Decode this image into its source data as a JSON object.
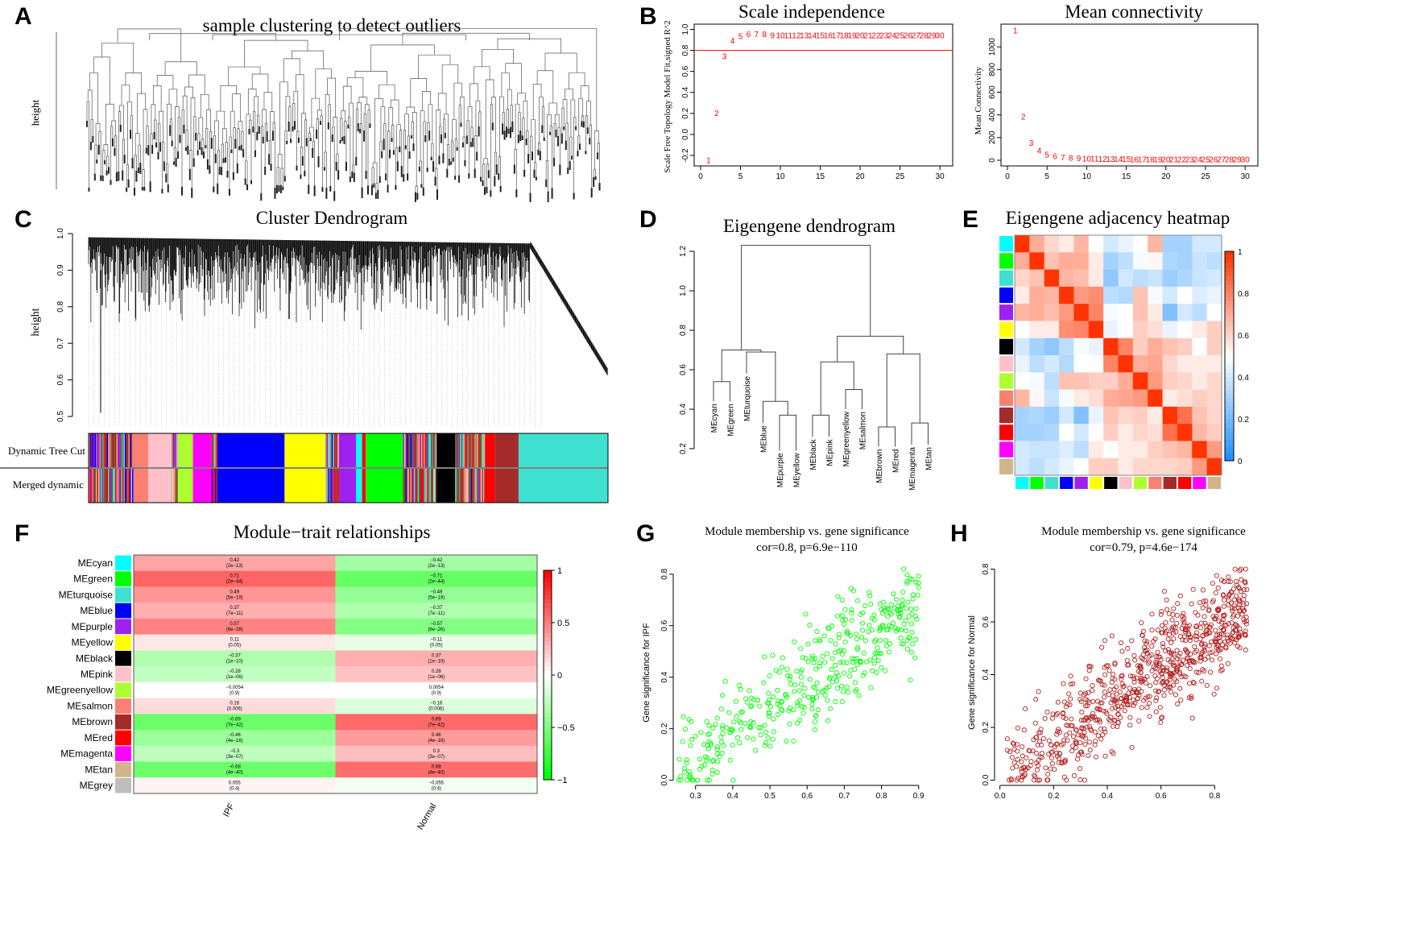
{
  "panel_labels": [
    "A",
    "B",
    "C",
    "D",
    "E",
    "F",
    "G",
    "H"
  ],
  "chart_data": [
    {
      "id": "A",
      "type": "dendrogram",
      "title": "sample clustering to detect outliers",
      "ylabel": "height"
    },
    {
      "id": "B1",
      "type": "scatter",
      "title": "Scale independence",
      "ylabel": "Scale Free Topology Model Fit,signed R^2",
      "xlabel": "",
      "xlim": [
        0,
        31
      ],
      "ylim": [
        -0.3,
        1.05
      ],
      "xticks": [
        0,
        5,
        10,
        15,
        20,
        25,
        30
      ],
      "yticks": [
        -0.2,
        0.0,
        0.2,
        0.4,
        0.6,
        0.8,
        1.0
      ],
      "threshold": 0.8,
      "threshold_color": "#ff0000",
      "x": [
        1,
        2,
        3,
        4,
        5,
        6,
        7,
        8,
        9,
        10,
        11,
        12,
        13,
        14,
        15,
        16,
        17,
        18,
        19,
        20,
        21,
        22,
        23,
        24,
        25,
        26,
        27,
        28,
        29,
        30
      ],
      "y": [
        -0.25,
        0.2,
        0.74,
        0.89,
        0.93,
        0.95,
        0.95,
        0.95,
        0.94,
        0.94,
        0.94,
        0.94,
        0.94,
        0.94,
        0.94,
        0.94,
        0.94,
        0.94,
        0.94,
        0.94,
        0.94,
        0.94,
        0.94,
        0.94,
        0.94,
        0.94,
        0.94,
        0.94,
        0.94,
        0.94
      ]
    },
    {
      "id": "B2",
      "type": "scatter",
      "title": "Mean connectivity",
      "ylabel": "Mean Connectivity",
      "xlim": [
        0,
        31
      ],
      "ylim": [
        -50,
        1200
      ],
      "xticks": [
        0,
        5,
        10,
        15,
        20,
        25,
        30
      ],
      "yticks": [
        0,
        200,
        400,
        600,
        800,
        1000
      ],
      "x": [
        1,
        2,
        3,
        4,
        5,
        6,
        7,
        8,
        9,
        10,
        11,
        12,
        13,
        14,
        15,
        16,
        17,
        18,
        19,
        20,
        21,
        22,
        23,
        24,
        25,
        26,
        27,
        28,
        29,
        30
      ],
      "y": [
        1140,
        380,
        150,
        80,
        45,
        30,
        22,
        16,
        13,
        11,
        9,
        8,
        7,
        6,
        6,
        5,
        5,
        4,
        4,
        4,
        3,
        3,
        3,
        3,
        3,
        2,
        2,
        2,
        2,
        2
      ]
    },
    {
      "id": "C",
      "type": "dendrogram",
      "title": "Cluster Dendrogram",
      "ylabel": "height",
      "ylim": [
        0.5,
        1.0
      ],
      "yticks": [
        0.5,
        0.6,
        0.7,
        0.8,
        0.9,
        1.0
      ],
      "rows": [
        "Dynamic Tree Cut",
        "Merged dynamic"
      ],
      "modules": [
        {
          "color": "#8b8b8b",
          "size": 6,
          "mixed": true
        },
        {
          "color": "#fa8072",
          "size": 2
        },
        {
          "color": "#ffc0cb",
          "size": 3
        },
        {
          "color": "#8b8b8b",
          "size": 1,
          "mixed": true
        },
        {
          "color": "#adff2f",
          "size": 2
        },
        {
          "color": "#ff00ff",
          "size": 2.5
        },
        {
          "color": "#8b8b8b",
          "size": 0.8,
          "mixed": true
        },
        {
          "color": "#0000ff",
          "size": 9
        },
        {
          "color": "#ffff00",
          "size": 5.5
        },
        {
          "color": "#8b8b8b",
          "size": 1.8,
          "mixed": true
        },
        {
          "color": "#a020f0",
          "size": 2.3
        },
        {
          "color": "#00ffff",
          "size": 0.8
        },
        {
          "color": "#ff0000",
          "size": 0.5
        },
        {
          "color": "#00ff00",
          "size": 5
        },
        {
          "color": "#8b8b8b",
          "size": 4.5,
          "mixed": true
        },
        {
          "color": "#000000",
          "size": 2.5
        },
        {
          "color": "#8b8b8b",
          "size": 4,
          "mixed": true
        },
        {
          "color": "#ff0000",
          "size": 1.3
        },
        {
          "color": "#a52a2a",
          "size": 3.2
        },
        {
          "color": "#40e0d0",
          "size": 12
        }
      ]
    },
    {
      "id": "D",
      "type": "dendrogram",
      "title": "Eigengene dendrogram",
      "ylim": [
        0.2,
        1.25
      ],
      "yticks": [
        0.2,
        0.4,
        0.6,
        0.8,
        1.0,
        1.2
      ],
      "leaves": [
        "MEcyan",
        "MEgreen",
        "MEturquoise",
        "MEblue",
        "MEpurple",
        "MEyellow",
        "MEblack",
        "MEpink",
        "MEgreenyellow",
        "MEsalmon",
        "MEbrown",
        "MEred",
        "MEmagenta",
        "MEtan"
      ],
      "leaf_heights": [
        0.44,
        0.44,
        0.58,
        0.33,
        0.19,
        0.19,
        0.26,
        0.26,
        0.4,
        0.4,
        0.21,
        0.21,
        0.22,
        0.22
      ],
      "merges": [
        {
          "a": "L0",
          "b": "L1",
          "h": 0.54
        },
        {
          "a": "L4",
          "b": "L5",
          "h": 0.37
        },
        {
          "a": "L3",
          "b": "M1",
          "h": 0.44
        },
        {
          "a": "L2",
          "b": "M2",
          "h": 0.69
        },
        {
          "a": "M0",
          "b": "M3",
          "h": 0.7
        },
        {
          "a": "L6",
          "b": "L7",
          "h": 0.37
        },
        {
          "a": "L8",
          "b": "L9",
          "h": 0.5
        },
        {
          "a": "M5",
          "b": "M6",
          "h": 0.64
        },
        {
          "a": "L10",
          "b": "L11",
          "h": 0.31
        },
        {
          "a": "L12",
          "b": "L13",
          "h": 0.33
        },
        {
          "a": "M8",
          "b": "M9",
          "h": 0.68
        },
        {
          "a": "M7",
          "b": "M10",
          "h": 0.77
        },
        {
          "a": "M4",
          "b": "M11",
          "h": 1.23
        }
      ]
    },
    {
      "id": "E",
      "type": "heatmap",
      "title": "Eigengene adjacency heatmap",
      "modules": [
        "cyan",
        "green",
        "turquoise",
        "blue",
        "purple",
        "yellow",
        "black",
        "pink",
        "greenyellow",
        "salmon",
        "brown",
        "red",
        "magenta",
        "tan"
      ],
      "module_colors": [
        "#00ffff",
        "#00ff00",
        "#40e0d0",
        "#0000ff",
        "#a020f0",
        "#ffff00",
        "#000000",
        "#ffc0cb",
        "#adff2f",
        "#fa8072",
        "#a52a2a",
        "#ff0000",
        "#ff00ff",
        "#d2b48c"
      ],
      "colorbar_ticks": [
        0,
        0.2,
        0.4,
        0.6,
        0.8,
        1
      ],
      "values": [
        [
          1,
          0.7,
          0.6,
          0.55,
          0.68,
          0.5,
          0.4,
          0.45,
          0.5,
          0.68,
          0.3,
          0.3,
          0.4,
          0.4
        ],
        [
          0.7,
          1,
          0.65,
          0.7,
          0.7,
          0.55,
          0.3,
          0.35,
          0.48,
          0.52,
          0.32,
          0.3,
          0.38,
          0.35
        ],
        [
          0.6,
          0.65,
          1,
          0.68,
          0.66,
          0.55,
          0.25,
          0.4,
          0.35,
          0.38,
          0.28,
          0.32,
          0.38,
          0.4
        ],
        [
          0.55,
          0.7,
          0.68,
          1,
          0.75,
          0.78,
          0.35,
          0.33,
          0.65,
          0.48,
          0.4,
          0.5,
          0.42,
          0.45
        ],
        [
          0.68,
          0.7,
          0.66,
          0.75,
          1,
          0.8,
          0.48,
          0.5,
          0.65,
          0.55,
          0.22,
          0.4,
          0.35,
          0.5
        ],
        [
          0.5,
          0.55,
          0.55,
          0.78,
          0.8,
          1,
          0.45,
          0.5,
          0.62,
          0.58,
          0.45,
          0.5,
          0.55,
          0.62
        ],
        [
          0.4,
          0.3,
          0.25,
          0.35,
          0.48,
          0.45,
          1,
          0.8,
          0.62,
          0.7,
          0.65,
          0.62,
          0.5,
          0.62
        ],
        [
          0.45,
          0.35,
          0.4,
          0.33,
          0.5,
          0.5,
          0.8,
          1,
          0.7,
          0.72,
          0.6,
          0.55,
          0.55,
          0.55
        ],
        [
          0.5,
          0.48,
          0.35,
          0.65,
          0.65,
          0.62,
          0.62,
          0.7,
          1,
          0.75,
          0.62,
          0.6,
          0.55,
          0.6
        ],
        [
          0.68,
          0.52,
          0.38,
          0.48,
          0.55,
          0.58,
          0.7,
          0.72,
          0.75,
          1,
          0.55,
          0.58,
          0.62,
          0.6
        ],
        [
          0.3,
          0.32,
          0.28,
          0.4,
          0.22,
          0.45,
          0.65,
          0.6,
          0.62,
          0.55,
          1,
          0.85,
          0.65,
          0.6
        ],
        [
          0.3,
          0.3,
          0.32,
          0.5,
          0.4,
          0.5,
          0.62,
          0.55,
          0.6,
          0.58,
          0.85,
          1,
          0.68,
          0.62
        ],
        [
          0.4,
          0.38,
          0.38,
          0.42,
          0.35,
          0.55,
          0.5,
          0.55,
          0.55,
          0.62,
          0.65,
          0.68,
          1,
          0.75
        ],
        [
          0.4,
          0.35,
          0.4,
          0.45,
          0.5,
          0.62,
          0.62,
          0.55,
          0.6,
          0.6,
          0.6,
          0.62,
          0.75,
          1
        ]
      ]
    },
    {
      "id": "F",
      "type": "heatmap",
      "title": "Module−trait relationships",
      "traits": [
        "IPF",
        "Normal"
      ],
      "colorbar_ticks": [
        "1",
        "0.5",
        "0",
        "−0.5",
        "−1"
      ],
      "rows": [
        {
          "module": "MEcyan",
          "color": "#00ffff",
          "cor": [
            0.42,
            -0.42
          ],
          "text": [
            "0.42",
            "−0.42"
          ],
          "p": "(2e−13)"
        },
        {
          "module": "MEgreen",
          "color": "#00ff00",
          "cor": [
            0.71,
            -0.71
          ],
          "text": [
            "0.71",
            "−0.71"
          ],
          "p": "(2e−44)"
        },
        {
          "module": "MEturquoise",
          "color": "#40e0d0",
          "cor": [
            0.49,
            -0.49
          ],
          "text": [
            "0.49",
            "−0.49"
          ],
          "p": "(5e−19)"
        },
        {
          "module": "MEblue",
          "color": "#0000ff",
          "cor": [
            0.37,
            -0.37
          ],
          "text": [
            "0.37",
            "−0.37"
          ],
          "p": "(7e−11)"
        },
        {
          "module": "MEpurple",
          "color": "#a020f0",
          "cor": [
            0.57,
            -0.57
          ],
          "text": [
            "0.57",
            "−0.57"
          ],
          "p": "(6e−26)"
        },
        {
          "module": "MEyellow",
          "color": "#ffff00",
          "cor": [
            0.11,
            -0.11
          ],
          "text": [
            "0.11",
            "−0.11"
          ],
          "p": "(0.05)"
        },
        {
          "module": "MEblack",
          "color": "#000000",
          "cor": [
            -0.37,
            0.37
          ],
          "text": [
            "−0.37",
            "0.37"
          ],
          "p": "(1e−10)"
        },
        {
          "module": "MEpink",
          "color": "#ffc0cb",
          "cor": [
            -0.28,
            0.28
          ],
          "text": [
            "−0.28",
            "0.28"
          ],
          "p": "(1e−06)"
        },
        {
          "module": "MEgreenyellow",
          "color": "#adff2f",
          "cor": [
            -0.0054,
            0.0054
          ],
          "text": [
            "−0.0054",
            "0.0054"
          ],
          "p": "(0.9)"
        },
        {
          "module": "MEsalmon",
          "color": "#fa8072",
          "cor": [
            0.16,
            -0.16
          ],
          "text": [
            "0.16",
            "−0.16"
          ],
          "p": "(0.006)"
        },
        {
          "module": "MEbrown",
          "color": "#a52a2a",
          "cor": [
            -0.69,
            0.69
          ],
          "text": [
            "−0.69",
            "0.69"
          ],
          "p": "(7e−42)"
        },
        {
          "module": "MEred",
          "color": "#ff0000",
          "cor": [
            -0.46,
            0.46
          ],
          "text": [
            "−0.46",
            "0.46"
          ],
          "p": "(4e−16)"
        },
        {
          "module": "MEmagenta",
          "color": "#ff00ff",
          "cor": [
            -0.3,
            0.3
          ],
          "text": [
            "−0.3",
            "0.3"
          ],
          "p": "(3e−07)"
        },
        {
          "module": "MEtan",
          "color": "#d2b48c",
          "cor": [
            -0.68,
            0.68
          ],
          "text": [
            "−0.68",
            "0.68"
          ],
          "p": "(4e−40)"
        },
        {
          "module": "MEgrey",
          "color": "#bebebe",
          "cor": [
            0.055,
            -0.055
          ],
          "text": [
            "0.055",
            "−0.055"
          ],
          "p": "(0.4)"
        }
      ]
    },
    {
      "id": "G",
      "type": "scatter",
      "title": "Module membership vs. gene significance",
      "subtitle": "cor=0.8, p=6.9e−110",
      "xlabel": "",
      "ylabel": "Gene significance for IPF",
      "xlim": [
        0.24,
        0.92
      ],
      "ylim": [
        -0.02,
        0.84
      ],
      "xticks": [
        0.3,
        0.4,
        0.5,
        0.6,
        0.7,
        0.8,
        0.9
      ],
      "yticks": [
        0.0,
        0.2,
        0.4,
        0.6,
        0.8
      ],
      "color": "#00ff00",
      "n": 420,
      "cor": 0.8,
      "trend": {
        "x": [
          0.25,
          0.9
        ],
        "y": [
          0.05,
          0.68
        ]
      },
      "spread": 0.1
    },
    {
      "id": "H",
      "type": "scatter",
      "title": "Module membership vs. gene significance",
      "subtitle": "cor=0.79, p=4.6e−174",
      "xlabel": "",
      "ylabel": "Gene significance for Normal",
      "xlim": [
        -0.02,
        0.94
      ],
      "ylim": [
        -0.02,
        0.82
      ],
      "xticks": [
        0.0,
        0.2,
        0.4,
        0.6,
        0.8
      ],
      "yticks": [
        0.0,
        0.2,
        0.4,
        0.6,
        0.8
      ],
      "color": "#b22222",
      "n": 780,
      "cor": 0.79,
      "trend": {
        "x": [
          0.02,
          0.92
        ],
        "y": [
          0.03,
          0.66
        ]
      },
      "spread": 0.1
    }
  ]
}
